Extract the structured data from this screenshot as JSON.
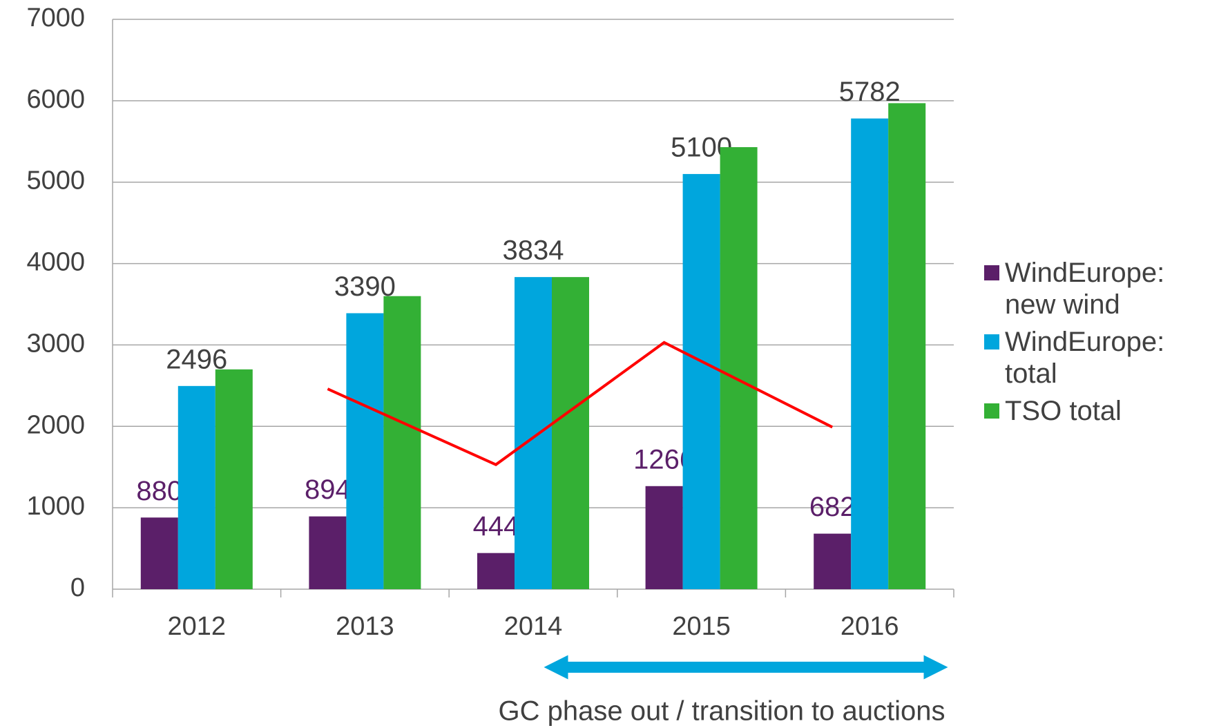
{
  "chart_data": {
    "type": "bar",
    "categories": [
      "2012",
      "2013",
      "2014",
      "2015",
      "2016"
    ],
    "series": [
      {
        "name": "WindEurope: new wind",
        "color": "#5b1f69",
        "values": [
          880,
          894,
          444,
          1266,
          682
        ],
        "label_color": "#5b1f69"
      },
      {
        "name": "WindEurope: total",
        "color": "#00a6dd",
        "values": [
          2496,
          3390,
          3834,
          5100,
          5782
        ],
        "label_color": "#404040"
      },
      {
        "name": "TSO total",
        "color": "#33b035",
        "values": [
          2700,
          3600,
          3834,
          5430,
          5970
        ]
      },
      {
        "type": "line",
        "color": "#ff0000",
        "values": [
          null,
          2460,
          1530,
          3030,
          1990
        ]
      }
    ],
    "ylim": [
      0,
      7000
    ],
    "yticks": [
      0,
      1000,
      2000,
      3000,
      4000,
      5000,
      6000,
      7000
    ],
    "grid": true,
    "legend": "right",
    "annotation": "GC phase out / transition to auctions"
  }
}
